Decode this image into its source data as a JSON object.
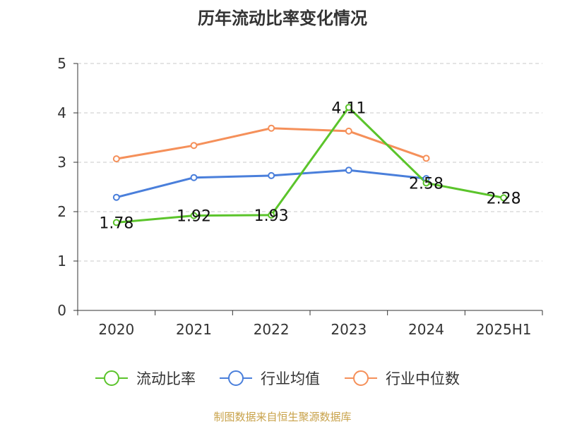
{
  "chart_data": {
    "type": "line",
    "title": "历年流动比率变化情况",
    "categories": [
      "2020",
      "2021",
      "2022",
      "2023",
      "2024",
      "2025H1"
    ],
    "ylim": [
      0,
      5
    ],
    "yticks": [
      0,
      1,
      2,
      3,
      4,
      5
    ],
    "grid": true,
    "legend_position": "bottom",
    "series": [
      {
        "name": "流动比率",
        "color": "#5bc42b",
        "values": [
          1.78,
          1.92,
          1.93,
          4.11,
          2.58,
          2.28
        ],
        "labels": [
          "1.78",
          "1.92",
          "1.93",
          "4.11",
          "2.58",
          "2.28"
        ]
      },
      {
        "name": "行业均值",
        "color": "#4a7fdb",
        "values": [
          2.29,
          2.69,
          2.73,
          2.84,
          2.67,
          null
        ]
      },
      {
        "name": "行业中位数",
        "color": "#f5905a",
        "values": [
          3.07,
          3.34,
          3.69,
          3.63,
          3.08,
          null
        ]
      }
    ]
  },
  "source_note": "制图数据来自恒生聚源数据库"
}
